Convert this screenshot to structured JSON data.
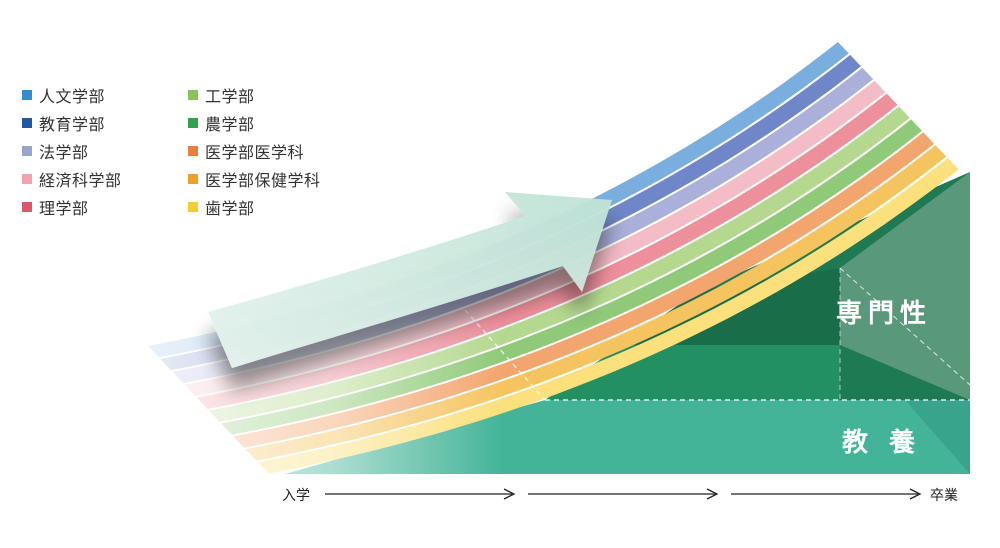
{
  "legend": [
    {
      "label": "人文学部",
      "color": "#2f8fd0"
    },
    {
      "label": "教育学部",
      "color": "#1f57a1"
    },
    {
      "label": "法学部",
      "color": "#9aa4d2"
    },
    {
      "label": "経済科学部",
      "color": "#f2a3ad"
    },
    {
      "label": "理学部",
      "color": "#e0546b"
    },
    {
      "label": "工学部",
      "color": "#8cc15a"
    },
    {
      "label": "農学部",
      "color": "#2fa44a"
    },
    {
      "label": "医学部医学科",
      "color": "#ec7d3b"
    },
    {
      "label": "医学部保健学科",
      "color": "#f0a022"
    },
    {
      "label": "歯学部",
      "color": "#f6ce2a"
    }
  ],
  "stripe_colors": [
    "#7aaedf",
    "#6f86c8",
    "#aab0da",
    "#f4bcc5",
    "#ee8f9c",
    "#b4d88e",
    "#8fca78",
    "#f3a56e",
    "#f6c45f",
    "#fbe07c"
  ],
  "bands": {
    "specialty_label": "専門性",
    "general_label": "教 養",
    "specialty_color": "#1e7a52",
    "general_color": "#43b497"
  },
  "axis": {
    "start_label": "入学",
    "end_label": "卒業"
  }
}
